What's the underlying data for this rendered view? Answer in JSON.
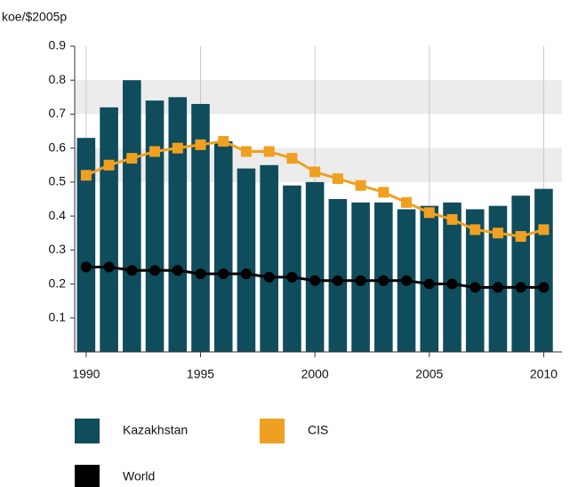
{
  "chart_data": {
    "type": "bar_line",
    "y_label": "koe/$2005p",
    "x": [
      1990,
      1991,
      1992,
      1993,
      1994,
      1995,
      1996,
      1997,
      1998,
      1999,
      2000,
      2001,
      2002,
      2003,
      2004,
      2005,
      2006,
      2007,
      2008,
      2009,
      2010
    ],
    "series": [
      {
        "name": "Kazakhstan",
        "color": "#0f4c5c",
        "kind": "bar",
        "values": [
          0.63,
          0.72,
          0.8,
          0.74,
          0.75,
          0.73,
          0.62,
          0.54,
          0.55,
          0.49,
          0.5,
          0.45,
          0.44,
          0.44,
          0.42,
          0.43,
          0.44,
          0.42,
          0.43,
          0.46,
          0.48
        ]
      },
      {
        "name": "CIS",
        "color": "#f0a020",
        "kind": "line",
        "marker": "square",
        "values": [
          0.52,
          0.55,
          0.57,
          0.59,
          0.6,
          0.61,
          0.62,
          0.59,
          0.59,
          0.57,
          0.53,
          0.51,
          0.49,
          0.47,
          0.44,
          0.41,
          0.39,
          0.36,
          0.35,
          0.34,
          0.36
        ]
      },
      {
        "name": "World",
        "color": "#000000",
        "kind": "line",
        "marker": "circle",
        "values": [
          0.25,
          0.25,
          0.24,
          0.24,
          0.24,
          0.23,
          0.23,
          0.23,
          0.22,
          0.22,
          0.21,
          0.21,
          0.21,
          0.21,
          0.21,
          0.2,
          0.2,
          0.19,
          0.19,
          0.19,
          0.19
        ]
      }
    ],
    "xlim": [
      1989.5,
      2010.8
    ],
    "xticks": [
      1990,
      1995,
      2000,
      2005,
      2010
    ],
    "ylim": [
      0,
      0.9
    ],
    "yticks": [
      0.1,
      0.2,
      0.3,
      0.4,
      0.5,
      0.6,
      0.7,
      0.8,
      0.9
    ],
    "bands": [
      [
        0.5,
        0.6
      ],
      [
        0.7,
        0.8
      ]
    ],
    "band_color": "#ececec",
    "grid_x": true,
    "legend": "bottom"
  }
}
